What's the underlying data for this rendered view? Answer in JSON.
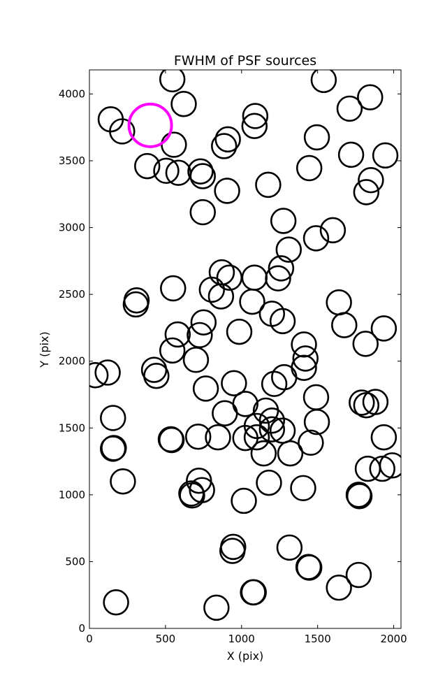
{
  "chart_data": {
    "type": "scatter",
    "title": "FWHM of PSF sources",
    "xlabel": "X (pix)",
    "ylabel": "Y (pix)",
    "xlim": [
      0,
      2048
    ],
    "ylim": [
      0,
      4180
    ],
    "xticks": [
      0,
      500,
      1000,
      1500,
      2000
    ],
    "yticks": [
      0,
      500,
      1000,
      1500,
      2000,
      2500,
      3000,
      3500,
      4000
    ],
    "marker": "open circle",
    "grid": false,
    "series": [
      {
        "color": "#000000",
        "radius": 80,
        "points": [
          [
            545,
            4110
          ],
          [
            620,
            3925
          ],
          [
            140,
            3810
          ],
          [
            215,
            3720
          ],
          [
            555,
            3620
          ],
          [
            380,
            3460
          ],
          [
            505,
            3425
          ],
          [
            585,
            3410
          ],
          [
            730,
            3420
          ],
          [
            745,
            3385
          ],
          [
            885,
            3610
          ],
          [
            910,
            3660
          ],
          [
            1090,
            3835
          ],
          [
            1085,
            3760
          ],
          [
            1540,
            4105
          ],
          [
            1495,
            3675
          ],
          [
            1710,
            3890
          ],
          [
            1845,
            3975
          ],
          [
            1720,
            3545
          ],
          [
            1945,
            3540
          ],
          [
            1850,
            3355
          ],
          [
            1820,
            3265
          ],
          [
            1445,
            3445
          ],
          [
            1175,
            3320
          ],
          [
            905,
            3275
          ],
          [
            745,
            3115
          ],
          [
            1275,
            3050
          ],
          [
            1600,
            2980
          ],
          [
            1490,
            2920
          ],
          [
            1310,
            2835
          ],
          [
            1260,
            2695
          ],
          [
            1240,
            2620
          ],
          [
            870,
            2665
          ],
          [
            920,
            2625
          ],
          [
            1085,
            2625
          ],
          [
            805,
            2535
          ],
          [
            865,
            2485
          ],
          [
            1070,
            2445
          ],
          [
            550,
            2545
          ],
          [
            310,
            2455
          ],
          [
            305,
            2425
          ],
          [
            1640,
            2440
          ],
          [
            1200,
            2355
          ],
          [
            1270,
            2300
          ],
          [
            750,
            2290
          ],
          [
            725,
            2195
          ],
          [
            580,
            2200
          ],
          [
            985,
            2220
          ],
          [
            1675,
            2270
          ],
          [
            1935,
            2245
          ],
          [
            1815,
            2130
          ],
          [
            545,
            2080
          ],
          [
            700,
            2010
          ],
          [
            1410,
            2125
          ],
          [
            1420,
            2020
          ],
          [
            1410,
            1950
          ],
          [
            425,
            1935
          ],
          [
            440,
            1890
          ],
          [
            40,
            1895
          ],
          [
            120,
            1915
          ],
          [
            1280,
            1880
          ],
          [
            1215,
            1830
          ],
          [
            950,
            1835
          ],
          [
            765,
            1795
          ],
          [
            1490,
            1730
          ],
          [
            1790,
            1690
          ],
          [
            1820,
            1670
          ],
          [
            1880,
            1695
          ],
          [
            155,
            1575
          ],
          [
            1025,
            1680
          ],
          [
            1160,
            1630
          ],
          [
            890,
            1610
          ],
          [
            1200,
            1555
          ],
          [
            1100,
            1515
          ],
          [
            1200,
            1490
          ],
          [
            1270,
            1480
          ],
          [
            1495,
            1545
          ],
          [
            155,
            1345
          ],
          [
            160,
            1350
          ],
          [
            535,
            1415
          ],
          [
            540,
            1410
          ],
          [
            715,
            1435
          ],
          [
            845,
            1430
          ],
          [
            1025,
            1425
          ],
          [
            1100,
            1430
          ],
          [
            1145,
            1310
          ],
          [
            1320,
            1310
          ],
          [
            1455,
            1390
          ],
          [
            1935,
            1430
          ],
          [
            1830,
            1195
          ],
          [
            1925,
            1195
          ],
          [
            1990,
            1220
          ],
          [
            220,
            1100
          ],
          [
            720,
            1105
          ],
          [
            740,
            1035
          ],
          [
            670,
            1010
          ],
          [
            675,
            995
          ],
          [
            1180,
            1090
          ],
          [
            1405,
            1050
          ],
          [
            1770,
            1000
          ],
          [
            1775,
            990
          ],
          [
            1015,
            955
          ],
          [
            945,
            610
          ],
          [
            940,
            580
          ],
          [
            1315,
            605
          ],
          [
            1440,
            460
          ],
          [
            1445,
            455
          ],
          [
            1770,
            400
          ],
          [
            1640,
            305
          ],
          [
            1075,
            270
          ],
          [
            1080,
            270
          ],
          [
            175,
            195
          ],
          [
            835,
            155
          ]
        ]
      },
      {
        "color": "#ff00ff",
        "radius": 140,
        "points": [
          [
            400,
            3765
          ]
        ]
      }
    ]
  }
}
